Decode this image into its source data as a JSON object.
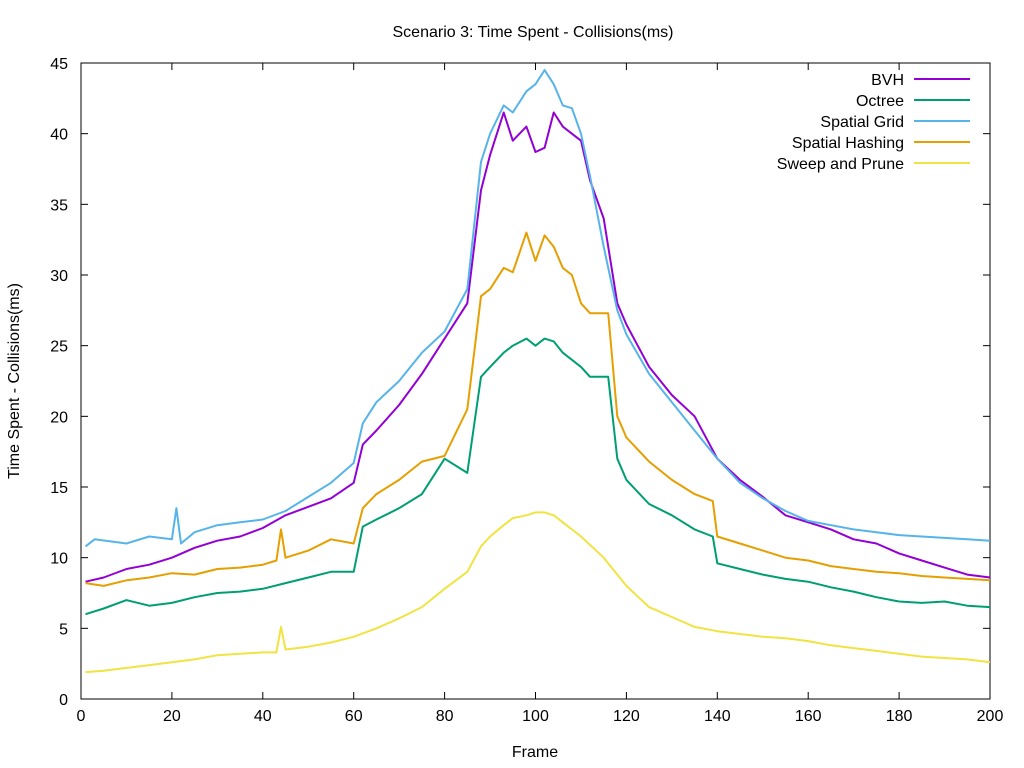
{
  "chart_data": {
    "type": "line",
    "title": "Scenario 3: Time Spent - Collisions(ms)",
    "xlabel": "Frame",
    "ylabel": "Time Spent - Collisions(ms)",
    "xlim": [
      0,
      200
    ],
    "ylim": [
      0,
      45
    ],
    "x_ticks": [
      "0",
      "20",
      "40",
      "60",
      "80",
      "100",
      "120",
      "140",
      "160",
      "180",
      "200"
    ],
    "y_ticks": [
      "0",
      "5",
      "10",
      "15",
      "20",
      "25",
      "30",
      "35",
      "40",
      "45"
    ],
    "grid": false,
    "legend_position": "top-right",
    "series": [
      {
        "name": "BVH",
        "color": "#9400d3",
        "x": [
          1,
          5,
          10,
          15,
          20,
          25,
          30,
          35,
          40,
          45,
          50,
          55,
          60,
          62,
          65,
          70,
          75,
          80,
          85,
          88,
          90,
          93,
          95,
          98,
          100,
          102,
          104,
          106,
          108,
          110,
          112,
          115,
          118,
          120,
          125,
          130,
          135,
          140,
          145,
          150,
          155,
          160,
          165,
          170,
          175,
          180,
          185,
          190,
          195,
          200
        ],
        "y": [
          8.3,
          8.6,
          9.2,
          9.5,
          10.0,
          10.7,
          11.2,
          11.5,
          12.1,
          13.0,
          13.6,
          14.2,
          15.3,
          18.0,
          19.0,
          20.8,
          23.0,
          25.5,
          28.0,
          36.0,
          38.5,
          41.5,
          39.5,
          40.5,
          38.7,
          39.0,
          41.5,
          40.5,
          40.0,
          39.5,
          36.7,
          34.0,
          28.0,
          26.5,
          23.5,
          21.5,
          20.0,
          17.0,
          15.5,
          14.3,
          13.0,
          12.5,
          12.0,
          11.3,
          11.0,
          10.3,
          9.8,
          9.3,
          8.8,
          8.6
        ]
      },
      {
        "name": "Octree",
        "color": "#009e73",
        "x": [
          1,
          5,
          10,
          15,
          20,
          25,
          30,
          35,
          40,
          45,
          50,
          55,
          60,
          62,
          65,
          70,
          75,
          80,
          85,
          88,
          90,
          93,
          95,
          98,
          100,
          102,
          104,
          106,
          108,
          110,
          112,
          114,
          116,
          118,
          120,
          125,
          130,
          135,
          139,
          140,
          145,
          150,
          155,
          160,
          165,
          170,
          175,
          180,
          185,
          190,
          195,
          200
        ],
        "y": [
          6.0,
          6.4,
          7.0,
          6.6,
          6.8,
          7.2,
          7.5,
          7.6,
          7.8,
          8.2,
          8.6,
          9.0,
          9.0,
          12.2,
          12.7,
          13.5,
          14.5,
          17.0,
          16.0,
          22.8,
          23.5,
          24.5,
          25.0,
          25.5,
          25.0,
          25.5,
          25.3,
          24.5,
          24.0,
          23.5,
          22.8,
          22.8,
          22.8,
          17.0,
          15.5,
          13.8,
          13.0,
          12.0,
          11.5,
          9.6,
          9.2,
          8.8,
          8.5,
          8.3,
          7.9,
          7.6,
          7.2,
          6.9,
          6.8,
          6.9,
          6.6,
          6.5
        ]
      },
      {
        "name": "Spatial Grid",
        "color": "#56b4e9",
        "x": [
          1,
          3,
          10,
          15,
          20,
          21,
          22,
          25,
          30,
          35,
          40,
          45,
          50,
          55,
          60,
          62,
          65,
          70,
          75,
          80,
          85,
          88,
          90,
          93,
          95,
          98,
          100,
          102,
          104,
          106,
          108,
          110,
          112,
          115,
          118,
          120,
          125,
          130,
          135,
          140,
          145,
          150,
          155,
          160,
          165,
          170,
          175,
          180,
          185,
          190,
          195,
          200
        ],
        "y": [
          10.8,
          11.3,
          11.0,
          11.5,
          11.3,
          13.5,
          11.0,
          11.8,
          12.3,
          12.5,
          12.7,
          13.3,
          14.3,
          15.3,
          16.7,
          19.5,
          21.0,
          22.5,
          24.5,
          26.0,
          29.0,
          38.0,
          40.0,
          42.0,
          41.5,
          43.0,
          43.5,
          44.5,
          43.5,
          42.0,
          41.8,
          40.0,
          37.0,
          32.0,
          27.5,
          25.8,
          23.0,
          21.0,
          19.0,
          17.0,
          15.3,
          14.2,
          13.3,
          12.6,
          12.3,
          12.0,
          11.8,
          11.6,
          11.5,
          11.4,
          11.3,
          11.2
        ]
      },
      {
        "name": "Spatial Hashing",
        "color": "#e69f00",
        "x": [
          1,
          5,
          10,
          15,
          20,
          25,
          30,
          35,
          40,
          43,
          44,
          45,
          50,
          55,
          60,
          62,
          65,
          70,
          75,
          80,
          85,
          88,
          90,
          93,
          95,
          98,
          100,
          102,
          104,
          106,
          108,
          110,
          112,
          114,
          116,
          118,
          120,
          125,
          130,
          135,
          139,
          140,
          145,
          150,
          155,
          160,
          165,
          170,
          175,
          180,
          185,
          190,
          195,
          200
        ],
        "y": [
          8.2,
          8.0,
          8.4,
          8.6,
          8.9,
          8.8,
          9.2,
          9.3,
          9.5,
          9.8,
          12.0,
          10.0,
          10.5,
          11.3,
          11.0,
          13.5,
          14.5,
          15.5,
          16.8,
          17.2,
          20.5,
          28.5,
          29.0,
          30.5,
          30.2,
          33.0,
          31.0,
          32.8,
          32.0,
          30.5,
          30.0,
          28.0,
          27.3,
          27.3,
          27.3,
          20.0,
          18.5,
          16.8,
          15.5,
          14.5,
          14.0,
          11.5,
          11.0,
          10.5,
          10.0,
          9.8,
          9.4,
          9.2,
          9.0,
          8.9,
          8.7,
          8.6,
          8.5,
          8.4
        ]
      },
      {
        "name": "Sweep and Prune",
        "color": "#f0e442",
        "x": [
          1,
          5,
          10,
          15,
          20,
          25,
          30,
          35,
          40,
          43,
          44,
          45,
          50,
          55,
          60,
          65,
          70,
          75,
          80,
          85,
          88,
          90,
          93,
          95,
          98,
          100,
          102,
          104,
          106,
          110,
          115,
          120,
          125,
          130,
          135,
          140,
          145,
          150,
          155,
          160,
          165,
          170,
          175,
          180,
          185,
          190,
          195,
          200
        ],
        "y": [
          1.9,
          2.0,
          2.2,
          2.4,
          2.6,
          2.8,
          3.1,
          3.2,
          3.3,
          3.3,
          5.1,
          3.5,
          3.7,
          4.0,
          4.4,
          5.0,
          5.7,
          6.5,
          7.8,
          9.0,
          10.8,
          11.5,
          12.3,
          12.8,
          13.0,
          13.2,
          13.2,
          13.0,
          12.5,
          11.5,
          10.0,
          8.0,
          6.5,
          5.8,
          5.1,
          4.8,
          4.6,
          4.4,
          4.3,
          4.1,
          3.8,
          3.6,
          3.4,
          3.2,
          3.0,
          2.9,
          2.8,
          2.6
        ]
      }
    ]
  }
}
